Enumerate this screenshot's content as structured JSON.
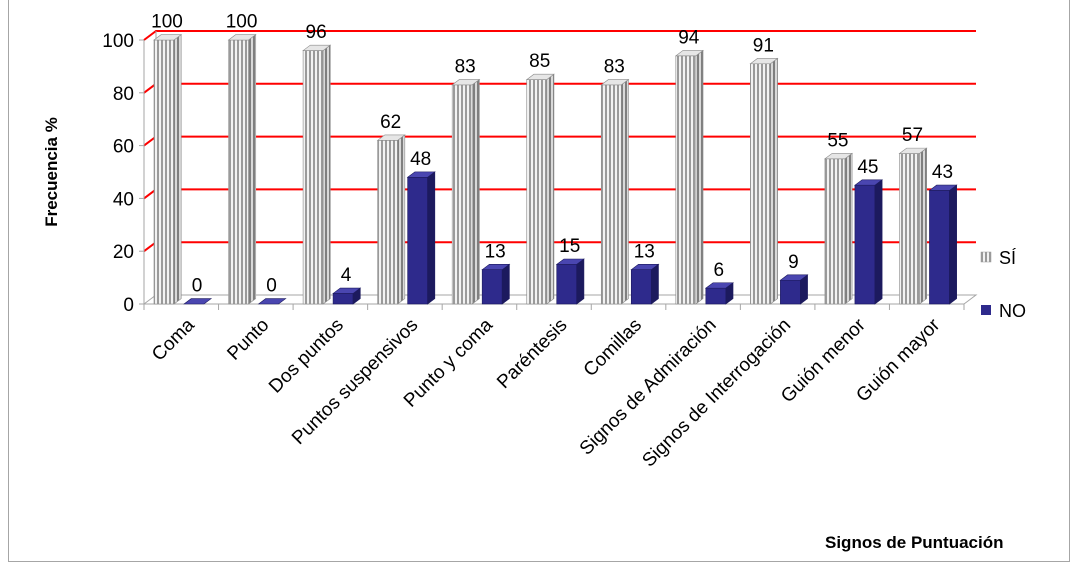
{
  "chart_data": {
    "type": "bar",
    "categories": [
      "Coma",
      "Punto",
      "Dos puntos",
      "Puntos suspensivos",
      "Punto y coma",
      "Paréntesis",
      "Comillas",
      "Signos de Admiración",
      "Signos de Interrogación",
      "Guión menor",
      "Guión mayor"
    ],
    "series": [
      {
        "name": "SÍ",
        "values": [
          100,
          100,
          96,
          62,
          83,
          85,
          83,
          94,
          91,
          55,
          57
        ],
        "color": "#a6a6a6"
      },
      {
        "name": "NO",
        "values": [
          0,
          0,
          4,
          48,
          13,
          15,
          13,
          6,
          9,
          45,
          43
        ],
        "color": "#2e2a8c"
      }
    ],
    "title": "",
    "xlabel": "Signos de Puntuación",
    "ylabel": "Frecuencia %",
    "ylim": [
      0,
      100
    ],
    "yticks": [
      0,
      20,
      40,
      60,
      80,
      100
    ],
    "gridline_color": "#ff0000",
    "grid": true,
    "legend_position": "right",
    "three_d": true
  }
}
